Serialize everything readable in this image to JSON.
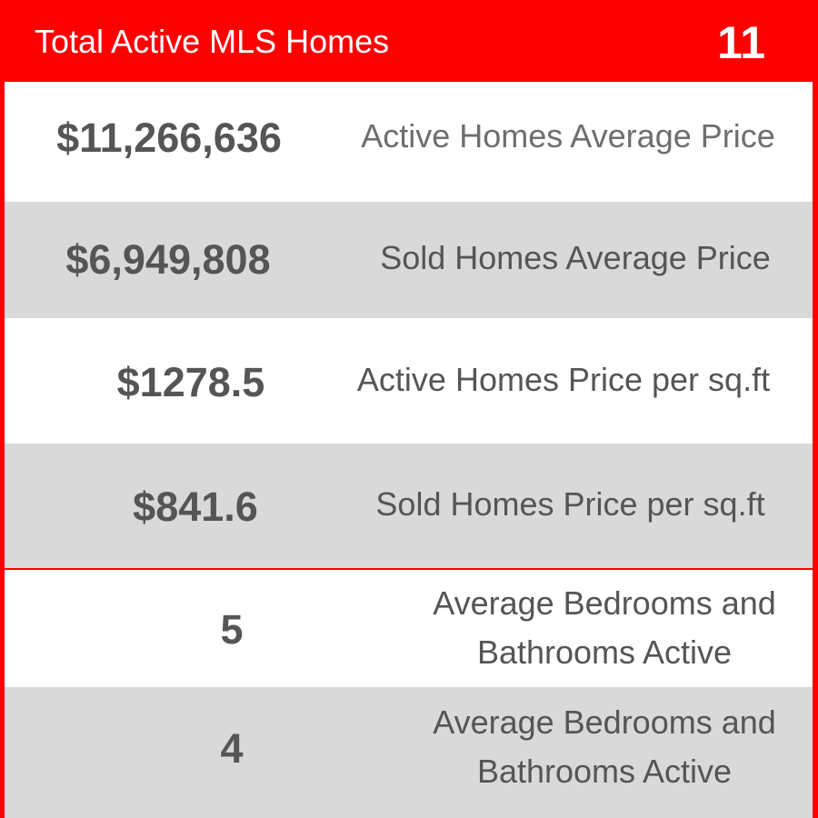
{
  "header": {
    "title": "Total Active MLS Homes",
    "count": "11"
  },
  "rows": [
    {
      "value": "$11,266,636",
      "label": "Active Homes Average Price"
    },
    {
      "value": "$6,949,808",
      "label": "Sold Homes Average Price"
    },
    {
      "value": "$1278.5",
      "label": "Active Homes Price per sq.ft"
    },
    {
      "value": "$841.6",
      "label": "Sold Homes Price per sq.ft"
    },
    {
      "value": "5",
      "label_line1": "Average Bedrooms and",
      "label_line2": "Bathrooms Active"
    },
    {
      "value": "4",
      "label_line1": "Average Bedrooms and",
      "label_line2": "Bathrooms Active"
    }
  ],
  "colors": {
    "accent": "#ff0000",
    "row_alt": "#d9d9d9",
    "value_text": "#555555",
    "label_text": "#6e6e6e"
  }
}
